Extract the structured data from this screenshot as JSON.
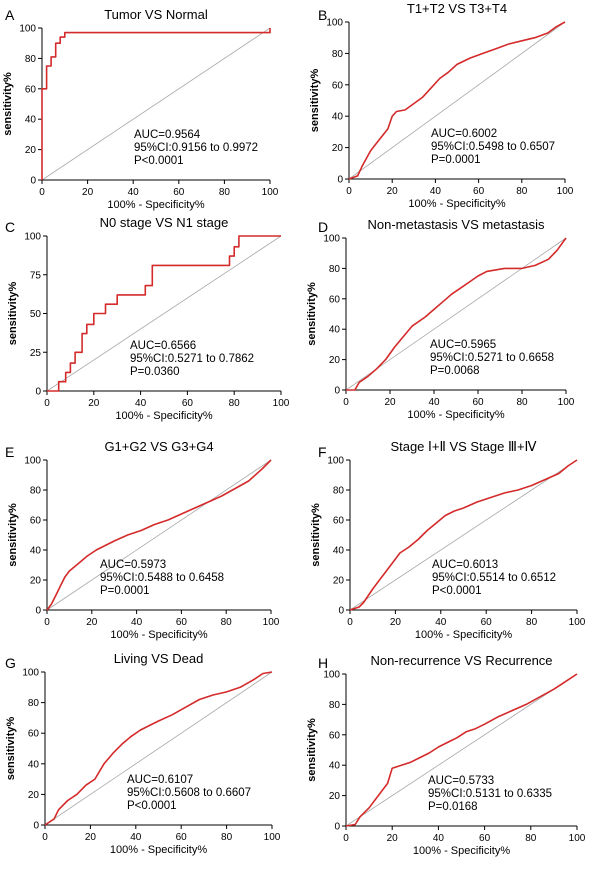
{
  "chart_data": [
    {
      "letter": "A",
      "type": "line",
      "title": "Tumor VS Normal",
      "xlabel": "100% - Specificity%",
      "ylabel": "sensitivity%",
      "xlim": [
        0,
        100
      ],
      "ylim": [
        0,
        100
      ],
      "xticks": [
        "0",
        "20",
        "40",
        "60",
        "80",
        "100"
      ],
      "yticks": [
        "0",
        "20",
        "40",
        "60",
        "80",
        "100"
      ],
      "annotation": [
        "AUC=0.9564",
        "95%CI:0.9156 to 0.9972",
        "P<0.0001"
      ],
      "x": [
        0,
        0,
        2,
        2,
        4,
        4,
        6,
        6,
        8,
        8,
        10,
        10,
        100,
        100
      ],
      "y": [
        0,
        60,
        60,
        75,
        75,
        81,
        81,
        90,
        90,
        94,
        94,
        97,
        97,
        100
      ]
    },
    {
      "letter": "B",
      "type": "line",
      "title": "T1+T2 VS T3+T4",
      "xlabel": "100% - Specificity%",
      "ylabel": "sensitivity%",
      "xlim": [
        0,
        100
      ],
      "ylim": [
        0,
        100
      ],
      "xticks": [
        "0",
        "20",
        "40",
        "60",
        "80",
        "100"
      ],
      "yticks": [
        "0",
        "20",
        "40",
        "60",
        "80",
        "100"
      ],
      "annotation": [
        "AUC=0.6002",
        "95%CI:0.5498 to 0.6507",
        "P=0.0001"
      ],
      "x": [
        0,
        4,
        6,
        10,
        14,
        18,
        20,
        22,
        26,
        30,
        34,
        38,
        42,
        46,
        50,
        56,
        62,
        68,
        74,
        80,
        86,
        92,
        96,
        100
      ],
      "y": [
        0,
        2,
        8,
        18,
        25,
        32,
        40,
        43,
        44,
        48,
        52,
        58,
        64,
        68,
        73,
        77,
        80,
        83,
        86,
        88,
        90,
        93,
        97,
        100
      ]
    },
    {
      "letter": "C",
      "type": "line",
      "title": "N0 stage VS N1 stage",
      "xlabel": "100% - Specificity%",
      "ylabel": "sensitivity%",
      "xlim": [
        0,
        100
      ],
      "ylim": [
        0,
        100
      ],
      "xticks": [
        "0",
        "20",
        "40",
        "60",
        "80",
        "100"
      ],
      "yticks": [
        "0",
        "25",
        "50",
        "75",
        "100"
      ],
      "annotation": [
        "AUC=0.6566",
        "95%CI:0.5271 to 0.7862",
        "P=0.0360"
      ],
      "x": [
        0,
        5,
        5,
        8,
        8,
        10,
        10,
        12,
        12,
        15,
        15,
        17,
        17,
        20,
        20,
        25,
        25,
        30,
        30,
        35,
        35,
        42,
        42,
        45,
        45,
        78,
        78,
        80,
        80,
        82,
        82,
        100
      ],
      "y": [
        0,
        0,
        6,
        6,
        12,
        12,
        18,
        18,
        25,
        25,
        37,
        37,
        43,
        43,
        50,
        50,
        56,
        56,
        62,
        62,
        62,
        62,
        68,
        68,
        81,
        81,
        87,
        87,
        93,
        93,
        100,
        100
      ]
    },
    {
      "letter": "D",
      "type": "line",
      "title": "Non-metastasis VS metastasis",
      "xlabel": "100% - Specificity%",
      "ylabel": "sensitivity%",
      "xlim": [
        0,
        100
      ],
      "ylim": [
        0,
        100
      ],
      "xticks": [
        "0",
        "20",
        "40",
        "60",
        "80",
        "100"
      ],
      "yticks": [
        "0",
        "20",
        "40",
        "60",
        "80",
        "100"
      ],
      "annotation": [
        "AUC=0.5965",
        "95%CI:0.5271 to 0.6658",
        "P=0.0068"
      ],
      "x": [
        0,
        4,
        6,
        10,
        14,
        18,
        22,
        26,
        30,
        36,
        40,
        44,
        48,
        52,
        56,
        60,
        64,
        68,
        72,
        76,
        80,
        86,
        92,
        96,
        100
      ],
      "y": [
        0,
        0,
        5,
        9,
        14,
        20,
        28,
        35,
        42,
        48,
        53,
        58,
        63,
        67,
        71,
        75,
        78,
        79,
        80,
        80,
        80,
        82,
        86,
        92,
        100
      ]
    },
    {
      "letter": "E",
      "type": "line",
      "title": "G1+G2 VS G3+G4",
      "xlabel": "100% - Specificity%",
      "ylabel": "sensitivity%",
      "xlim": [
        0,
        100
      ],
      "ylim": [
        0,
        100
      ],
      "xticks": [
        "0",
        "20",
        "40",
        "60",
        "80",
        "100"
      ],
      "yticks": [
        "0",
        "20",
        "40",
        "60",
        "80",
        "100"
      ],
      "annotation": [
        "AUC=0.5973",
        "95%CI:0.5488 to 0.6458",
        "P=0.0001"
      ],
      "x": [
        0,
        2,
        4,
        6,
        8,
        10,
        14,
        18,
        22,
        26,
        30,
        36,
        42,
        48,
        54,
        60,
        66,
        72,
        78,
        84,
        90,
        96,
        100
      ],
      "y": [
        0,
        4,
        10,
        16,
        22,
        26,
        31,
        36,
        40,
        43,
        46,
        50,
        53,
        57,
        60,
        64,
        68,
        72,
        76,
        81,
        86,
        94,
        100
      ]
    },
    {
      "letter": "F",
      "type": "line",
      "title": "Stage Ⅰ+Ⅱ VS Stage Ⅲ+Ⅳ",
      "xlabel": "100% - Specificity%",
      "ylabel": "sensitivity%",
      "xlim": [
        0,
        100
      ],
      "ylim": [
        0,
        100
      ],
      "xticks": [
        "0",
        "20",
        "40",
        "60",
        "80",
        "100"
      ],
      "yticks": [
        "0",
        "20",
        "40",
        "60",
        "80",
        "100"
      ],
      "annotation": [
        "AUC=0.6013",
        "95%CI:0.5514 to 0.6512",
        "P<0.0001"
      ],
      "x": [
        0,
        4,
        6,
        10,
        14,
        18,
        22,
        26,
        30,
        34,
        38,
        42,
        46,
        50,
        56,
        62,
        68,
        74,
        80,
        86,
        92,
        96,
        100
      ],
      "y": [
        0,
        2,
        5,
        14,
        22,
        30,
        38,
        42,
        47,
        53,
        58,
        63,
        66,
        68,
        72,
        75,
        78,
        80,
        83,
        87,
        91,
        96,
        100
      ]
    },
    {
      "letter": "G",
      "type": "line",
      "title": "Living VS Dead",
      "xlabel": "100% - Specificity%",
      "ylabel": "sensitivity%",
      "xlim": [
        0,
        100
      ],
      "ylim": [
        0,
        100
      ],
      "xticks": [
        "0",
        "20",
        "40",
        "60",
        "80",
        "100"
      ],
      "yticks": [
        "0",
        "20",
        "40",
        "60",
        "80",
        "100"
      ],
      "annotation": [
        "AUC=0.6107",
        "95%CI:0.5608 to 0.6607",
        "P<0.0001"
      ],
      "x": [
        0,
        4,
        6,
        10,
        14,
        18,
        22,
        26,
        30,
        34,
        38,
        42,
        46,
        50,
        56,
        62,
        68,
        74,
        80,
        86,
        92,
        96,
        100
      ],
      "y": [
        0,
        4,
        10,
        16,
        20,
        26,
        30,
        40,
        47,
        53,
        58,
        62,
        65,
        68,
        72,
        77,
        82,
        85,
        87,
        90,
        95,
        99,
        100
      ]
    },
    {
      "letter": "H",
      "type": "line",
      "title": "Non-recurrence VS Recurrence",
      "xlabel": "100% - Specificity%",
      "ylabel": "sensitivity%",
      "xlim": [
        0,
        100
      ],
      "ylim": [
        0,
        100
      ],
      "xticks": [
        "0",
        "20",
        "40",
        "60",
        "80",
        "100"
      ],
      "yticks": [
        "0",
        "20",
        "40",
        "60",
        "80",
        "100"
      ],
      "annotation": [
        "AUC=0.5733",
        "95%CI:0.5131 to 0.6335",
        "P=0.0168"
      ],
      "x": [
        0,
        4,
        6,
        10,
        14,
        18,
        20,
        24,
        28,
        32,
        36,
        40,
        44,
        48,
        52,
        56,
        60,
        66,
        72,
        78,
        84,
        90,
        96,
        100
      ],
      "y": [
        0,
        1,
        6,
        12,
        20,
        28,
        38,
        40,
        42,
        45,
        48,
        52,
        55,
        58,
        62,
        64,
        67,
        72,
        76,
        80,
        85,
        90,
        96,
        100
      ]
    }
  ]
}
